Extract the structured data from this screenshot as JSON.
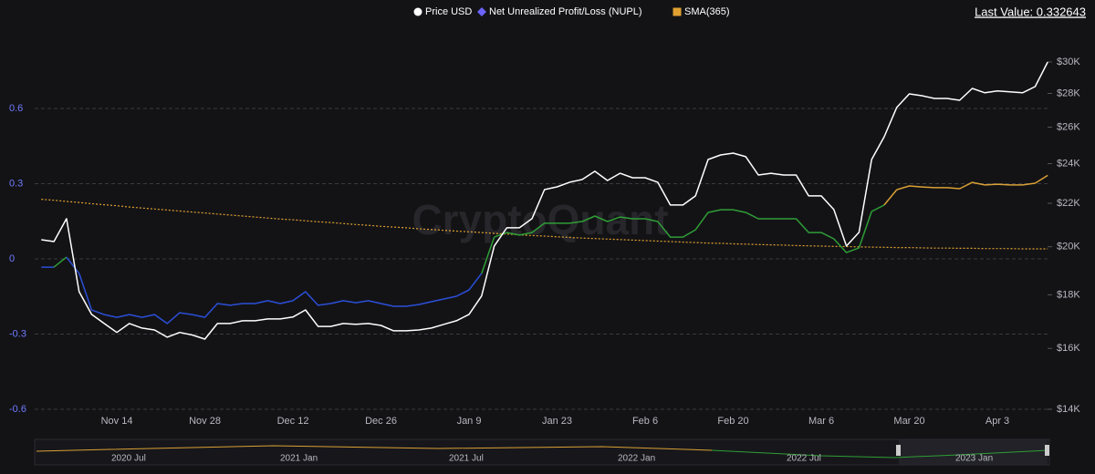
{
  "chart_data": {
    "type": "line",
    "legend_extra": "Last Value: 0.332643",
    "watermark": "CryptoQuant",
    "categories": [
      null,
      null,
      null,
      null,
      null,
      null,
      "Nov 14",
      null,
      null,
      null,
      null,
      null,
      null,
      "Nov 28",
      null,
      null,
      null,
      null,
      null,
      null,
      "Dec 12",
      null,
      null,
      null,
      null,
      null,
      null,
      "Dec 26",
      null,
      null,
      null,
      null,
      null,
      null,
      "Jan 9",
      null,
      null,
      null,
      null,
      null,
      null,
      "Jan 23",
      null,
      null,
      null,
      null,
      null,
      null,
      "Feb 6",
      null,
      null,
      null,
      null,
      null,
      null,
      "Feb 20",
      null,
      null,
      null,
      null,
      null,
      null,
      "Mar 6",
      null,
      null,
      null,
      null,
      null,
      null,
      "Mar 20",
      null,
      null,
      null,
      null,
      null,
      null,
      "Apr 3",
      null,
      null,
      null,
      null
    ],
    "ylim": [
      -0.65,
      0.9
    ],
    "yticks": [
      -0.6,
      -0.3,
      0,
      0.3,
      0.6
    ],
    "y2lim": [
      13620,
      31950
    ],
    "y2scale": "log",
    "y2ticks": [
      {
        "value": 14000,
        "label": "$14K"
      },
      {
        "value": 16000,
        "label": "$16K"
      },
      {
        "value": 18000,
        "label": "$18K"
      },
      {
        "value": 20000,
        "label": "$20K"
      },
      {
        "value": 22000,
        "label": "$22K"
      },
      {
        "value": 24000,
        "label": "$24K"
      },
      {
        "value": 26000,
        "label": "$26K"
      },
      {
        "value": 28000,
        "label": "$28K"
      },
      {
        "value": 30000,
        "label": "$30K"
      }
    ],
    "grid": true,
    "series": [
      {
        "name": "Price USD",
        "color": "#ffffff",
        "marker": "circle",
        "axis": "y2",
        "values": [
          20310,
          20230,
          21270,
          18120,
          17240,
          16900,
          16570,
          16900,
          16730,
          16660,
          16400,
          16570,
          16480,
          16330,
          16900,
          16900,
          17000,
          17000,
          17070,
          17070,
          17140,
          17410,
          16790,
          16790,
          16900,
          16870,
          16900,
          16830,
          16630,
          16630,
          16660,
          16730,
          16870,
          17000,
          17240,
          17950,
          20030,
          20850,
          20850,
          21270,
          22670,
          22810,
          23040,
          23180,
          23600,
          23130,
          23500,
          23270,
          23270,
          23040,
          21920,
          21920,
          22360,
          24220,
          24460,
          24560,
          24370,
          23410,
          23500,
          23410,
          23410,
          22360,
          22360,
          21700,
          20030,
          20640,
          24220,
          25460,
          27150,
          27970,
          27860,
          27690,
          27690,
          27580,
          28310,
          28040,
          28150,
          28100,
          28040,
          28420,
          30000
        ]
      },
      {
        "name": "Net Unrealized Profit/Loss (NUPL)",
        "color": "#6c63ff",
        "marker": "diamond",
        "zones": [
          {
            "below": 0,
            "color": "#2b4fd8"
          },
          {
            "below": 0.25,
            "color": "#2f9e36"
          },
          {
            "color": "#d9a035"
          }
        ],
        "values": [
          -0.033,
          -0.033,
          0.007,
          -0.058,
          -0.204,
          -0.222,
          -0.233,
          -0.222,
          -0.233,
          -0.222,
          -0.258,
          -0.215,
          -0.222,
          -0.233,
          -0.178,
          -0.185,
          -0.178,
          -0.178,
          -0.167,
          -0.178,
          -0.167,
          -0.131,
          -0.185,
          -0.178,
          -0.167,
          -0.175,
          -0.167,
          -0.178,
          -0.189,
          -0.189,
          -0.182,
          -0.171,
          -0.16,
          -0.149,
          -0.124,
          -0.058,
          0.087,
          0.105,
          0.095,
          0.105,
          0.142,
          0.142,
          0.142,
          0.149,
          0.171,
          0.149,
          0.167,
          0.16,
          0.16,
          0.149,
          0.087,
          0.087,
          0.116,
          0.185,
          0.196,
          0.196,
          0.185,
          0.16,
          0.16,
          0.16,
          0.16,
          0.105,
          0.105,
          0.08,
          0.025,
          0.044,
          0.189,
          0.215,
          0.276,
          0.291,
          0.287,
          0.284,
          0.284,
          0.28,
          0.305,
          0.295,
          0.298,
          0.295,
          0.295,
          0.302,
          0.333
        ]
      },
      {
        "name": "SMA(365)",
        "color": "#e0a030",
        "marker": "square",
        "dash": true,
        "values": [
          0.238,
          0.234,
          0.229,
          0.225,
          0.22,
          0.216,
          0.212,
          0.207,
          0.203,
          0.199,
          0.195,
          0.191,
          0.187,
          0.183,
          0.179,
          0.175,
          0.171,
          0.167,
          0.163,
          0.159,
          0.156,
          0.152,
          0.148,
          0.145,
          0.141,
          0.137,
          0.134,
          0.13,
          0.127,
          0.124,
          0.12,
          0.117,
          0.114,
          0.111,
          0.108,
          0.105,
          0.102,
          0.099,
          0.096,
          0.093,
          0.091,
          0.088,
          0.086,
          0.083,
          0.081,
          0.079,
          0.077,
          0.075,
          0.073,
          0.071,
          0.069,
          0.067,
          0.065,
          0.063,
          0.062,
          0.06,
          0.059,
          0.057,
          0.056,
          0.055,
          0.053,
          0.052,
          0.051,
          0.05,
          0.049,
          0.048,
          0.047,
          0.046,
          0.045,
          0.045,
          0.044,
          0.043,
          0.043,
          0.042,
          0.042,
          0.041,
          0.041,
          0.041,
          0.04,
          0.04,
          0.04
        ]
      }
    ],
    "navigator_labels": [
      "2020 Jul",
      "2021 Jan",
      "2021 Jul",
      "2022 Jan",
      "2022 Jul",
      "2023 Jan"
    ]
  }
}
